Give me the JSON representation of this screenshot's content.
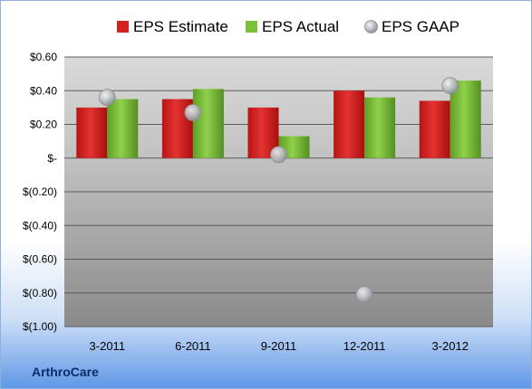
{
  "company": "ArthroCare",
  "colors": {
    "estimate": "#d42020",
    "actual": "#7bbf3a",
    "gaap": "#b5b8be"
  },
  "chart_data": {
    "type": "bar",
    "categories": [
      "3-2011",
      "6-2011",
      "9-2011",
      "12-2011",
      "3-2012"
    ],
    "series": [
      {
        "name": "EPS Estimate",
        "kind": "bar",
        "values": [
          0.3,
          0.35,
          0.3,
          0.4,
          0.34
        ]
      },
      {
        "name": "EPS Actual",
        "kind": "bar",
        "values": [
          0.35,
          0.41,
          0.13,
          0.36,
          0.46
        ]
      },
      {
        "name": "EPS GAAP",
        "kind": "marker",
        "values": [
          0.36,
          0.27,
          0.02,
          -0.81,
          0.43
        ]
      }
    ],
    "ylim": [
      -1.0,
      0.6
    ],
    "yticks": [
      0.6,
      0.4,
      0.2,
      0.0,
      -0.2,
      -0.4,
      -0.6,
      -0.8,
      -1.0
    ],
    "ytick_labels": [
      "$0.60",
      "$0.40",
      "$0.20",
      "$-",
      "$(0.20)",
      "$(0.40)",
      "$(0.60)",
      "$(0.80)",
      "$(1.00)"
    ],
    "grid": true,
    "legend": "top"
  }
}
